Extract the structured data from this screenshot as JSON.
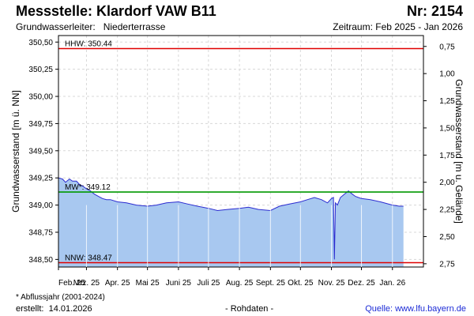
{
  "header": {
    "title": "Messstelle: Klardorf VAW B11",
    "number": "Nr: 2154",
    "aquifer_label": "Grundwasserleiter:",
    "aquifer_value": "Niederterrasse",
    "period": "Zeitraum: Feb 2025 - Jan 2026"
  },
  "footer": {
    "footnote": "* Abflussjahr (2001-2024)",
    "created_label": "erstellt:",
    "created_date": "14.01.2026",
    "raw": "- Rohdaten -",
    "source": "Quelle: www.lfu.bayern.de"
  },
  "colors": {
    "fill": "#a8c8f0",
    "line": "#2b2bd0",
    "hhw": "#e00000",
    "nnw": "#e00000",
    "mw": "#009900",
    "grid": "#d8d8d8"
  },
  "chart_data": {
    "type": "area",
    "ylabel_left": "Grundwasserstand [m ü. NN]",
    "ylabel_right": "Grundwasserstand [m u. Gelände]",
    "ylim": [
      348.43,
      350.56
    ],
    "yticks_left": [
      "350,50",
      "350,25",
      "350,00",
      "349,75",
      "349,50",
      "349,25",
      "349,00",
      "348,75",
      "348,50"
    ],
    "yticks_left_values": [
      350.5,
      350.25,
      350.0,
      349.75,
      349.5,
      349.25,
      349.0,
      348.75,
      348.5
    ],
    "yticks_right": [
      "0,75",
      "1,00",
      "1,25",
      "1,50",
      "1,75",
      "2,00",
      "2,25",
      "2,50",
      "2,75"
    ],
    "yticks_right_values": [
      0.75,
      1.0,
      1.25,
      1.5,
      1.75,
      2.0,
      2.25,
      2.5,
      2.75
    ],
    "ground_level": 351.21,
    "xlim": [
      "2025-02-01",
      "2026-02-01"
    ],
    "xticks": [
      "Feb. 25",
      "Mrz. 25",
      "Apr. 25",
      "Mai 25",
      "Juni 25",
      "Juli 25",
      "Aug. 25",
      "Sept. 25",
      "Okt. 25",
      "Nov. 25",
      "Dez. 25",
      "Jan. 26"
    ],
    "xtick_dates": [
      "2025-02-01",
      "2025-03-01",
      "2025-04-01",
      "2025-05-01",
      "2025-06-01",
      "2025-07-01",
      "2025-08-01",
      "2025-09-01",
      "2025-10-01",
      "2025-11-01",
      "2025-12-01",
      "2026-01-01"
    ],
    "reference_lines": [
      {
        "label": "HHW: 350.44",
        "value": 350.44,
        "color": "#e00000"
      },
      {
        "label": "MW*: 349.12",
        "value": 349.12,
        "color": "#009900"
      },
      {
        "label": "NNW: 348.47",
        "value": 348.47,
        "color": "#e00000"
      }
    ],
    "series": [
      {
        "x": [
          "2025-02-01",
          "2025-02-05",
          "2025-02-08",
          "2025-02-12",
          "2025-02-15",
          "2025-02-19",
          "2025-02-22",
          "2025-02-26",
          "2025-03-01",
          "2025-03-05",
          "2025-03-09",
          "2025-03-13",
          "2025-03-17",
          "2025-03-21",
          "2025-03-25",
          "2025-04-01",
          "2025-04-10",
          "2025-04-20",
          "2025-05-01",
          "2025-05-10",
          "2025-05-20",
          "2025-06-01",
          "2025-06-10",
          "2025-06-20",
          "2025-07-01",
          "2025-07-10",
          "2025-07-20",
          "2025-08-01",
          "2025-08-10",
          "2025-08-20",
          "2025-09-01",
          "2025-09-10",
          "2025-09-20",
          "2025-10-01",
          "2025-10-08",
          "2025-10-15",
          "2025-10-22",
          "2025-10-28",
          "2025-11-01",
          "2025-11-03",
          "2025-11-04",
          "2025-11-05",
          "2025-11-07",
          "2025-11-10",
          "2025-11-14",
          "2025-11-18",
          "2025-11-22",
          "2025-11-25",
          "2025-11-28",
          "2025-12-01",
          "2025-12-10",
          "2025-12-20",
          "2026-01-01",
          "2026-01-08",
          "2026-01-12"
        ],
        "y": [
          349.25,
          349.24,
          349.21,
          349.24,
          349.22,
          349.22,
          349.19,
          349.17,
          349.15,
          349.13,
          349.1,
          349.08,
          349.06,
          349.05,
          349.05,
          349.03,
          349.02,
          349.0,
          348.99,
          349.0,
          349.02,
          349.03,
          349.01,
          348.99,
          348.97,
          348.95,
          348.96,
          348.97,
          348.98,
          348.96,
          348.95,
          348.99,
          349.01,
          349.03,
          349.05,
          349.07,
          349.05,
          349.02,
          349.06,
          349.07,
          348.5,
          349.02,
          349.0,
          349.07,
          349.1,
          349.13,
          349.1,
          349.08,
          349.07,
          349.06,
          349.05,
          349.03,
          349.0,
          348.99,
          348.99
        ]
      }
    ]
  }
}
